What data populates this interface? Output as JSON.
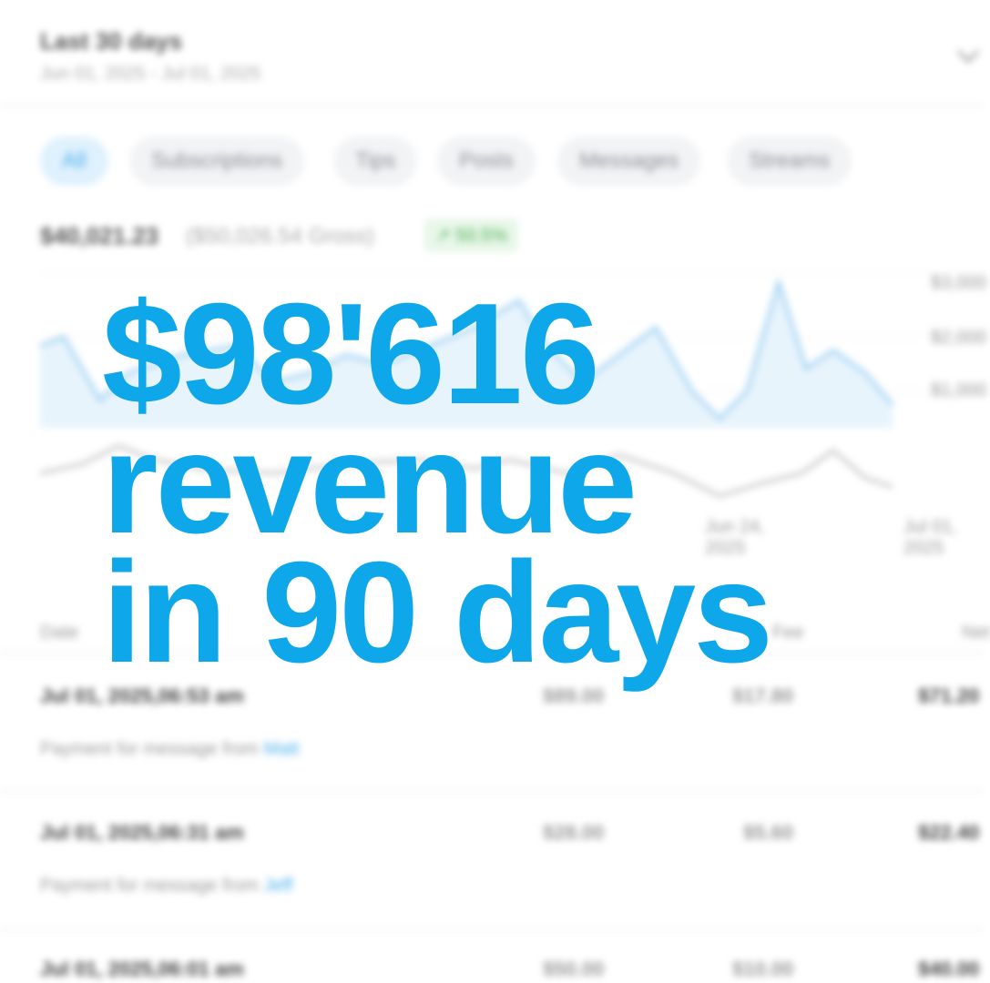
{
  "header": {
    "title": "Last 30 days",
    "range": "Jun 01, 2025 - Jul 01, 2025"
  },
  "tabs": [
    "All",
    "Subscriptions",
    "Tips",
    "Posts",
    "Messages",
    "Streams"
  ],
  "summary": {
    "net": "$40,021.23",
    "gross": "($50,026.54 Gross)",
    "change": "↗ 50.5%"
  },
  "chart_axis": {
    "y_labels": [
      "$3,000",
      "$2,000",
      "$1,000"
    ],
    "x_labels": [
      "Jun 24, 2025",
      "Jul 01, 2025"
    ]
  },
  "table": {
    "columns": [
      "Date",
      "Fee",
      "Net"
    ],
    "rows": [
      {
        "date": "Jul 01, 2025,06:53 am",
        "amount": "$89.00",
        "fee": "$17.80",
        "net": "$71.20",
        "desc": "Payment for message from",
        "user": "Matt"
      },
      {
        "date": "Jul 01, 2025,06:31 am",
        "amount": "$28.00",
        "fee": "$5.60",
        "net": "$22.40",
        "desc": "Payment for message from",
        "user": "Jeff"
      },
      {
        "date": "Jul 01, 2025,06:01 am",
        "amount": "$50.00",
        "fee": "$10.00",
        "net": "$40.00"
      }
    ]
  },
  "overlay": [
    "$98'616",
    "revenue",
    "in 90 days"
  ]
}
